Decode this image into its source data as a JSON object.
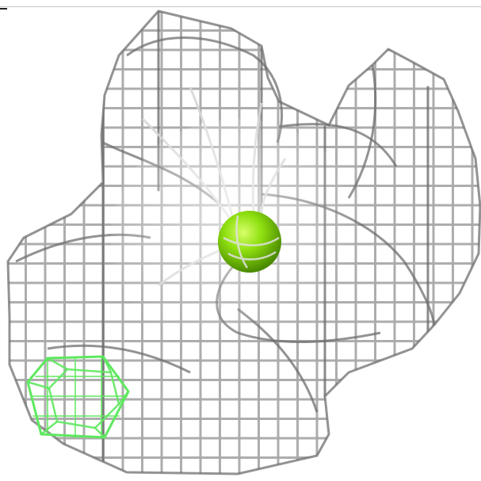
{
  "scene": {
    "background": "#ffffff",
    "mesh_color": "#a9a9a9",
    "mesh_dark": "#6f6f6f",
    "mesh_light": "#d6d6d6",
    "atom_color": "#7fd400",
    "atom_highlight": "#c8ff40",
    "ligand_cage_color": "#5fe85f"
  }
}
